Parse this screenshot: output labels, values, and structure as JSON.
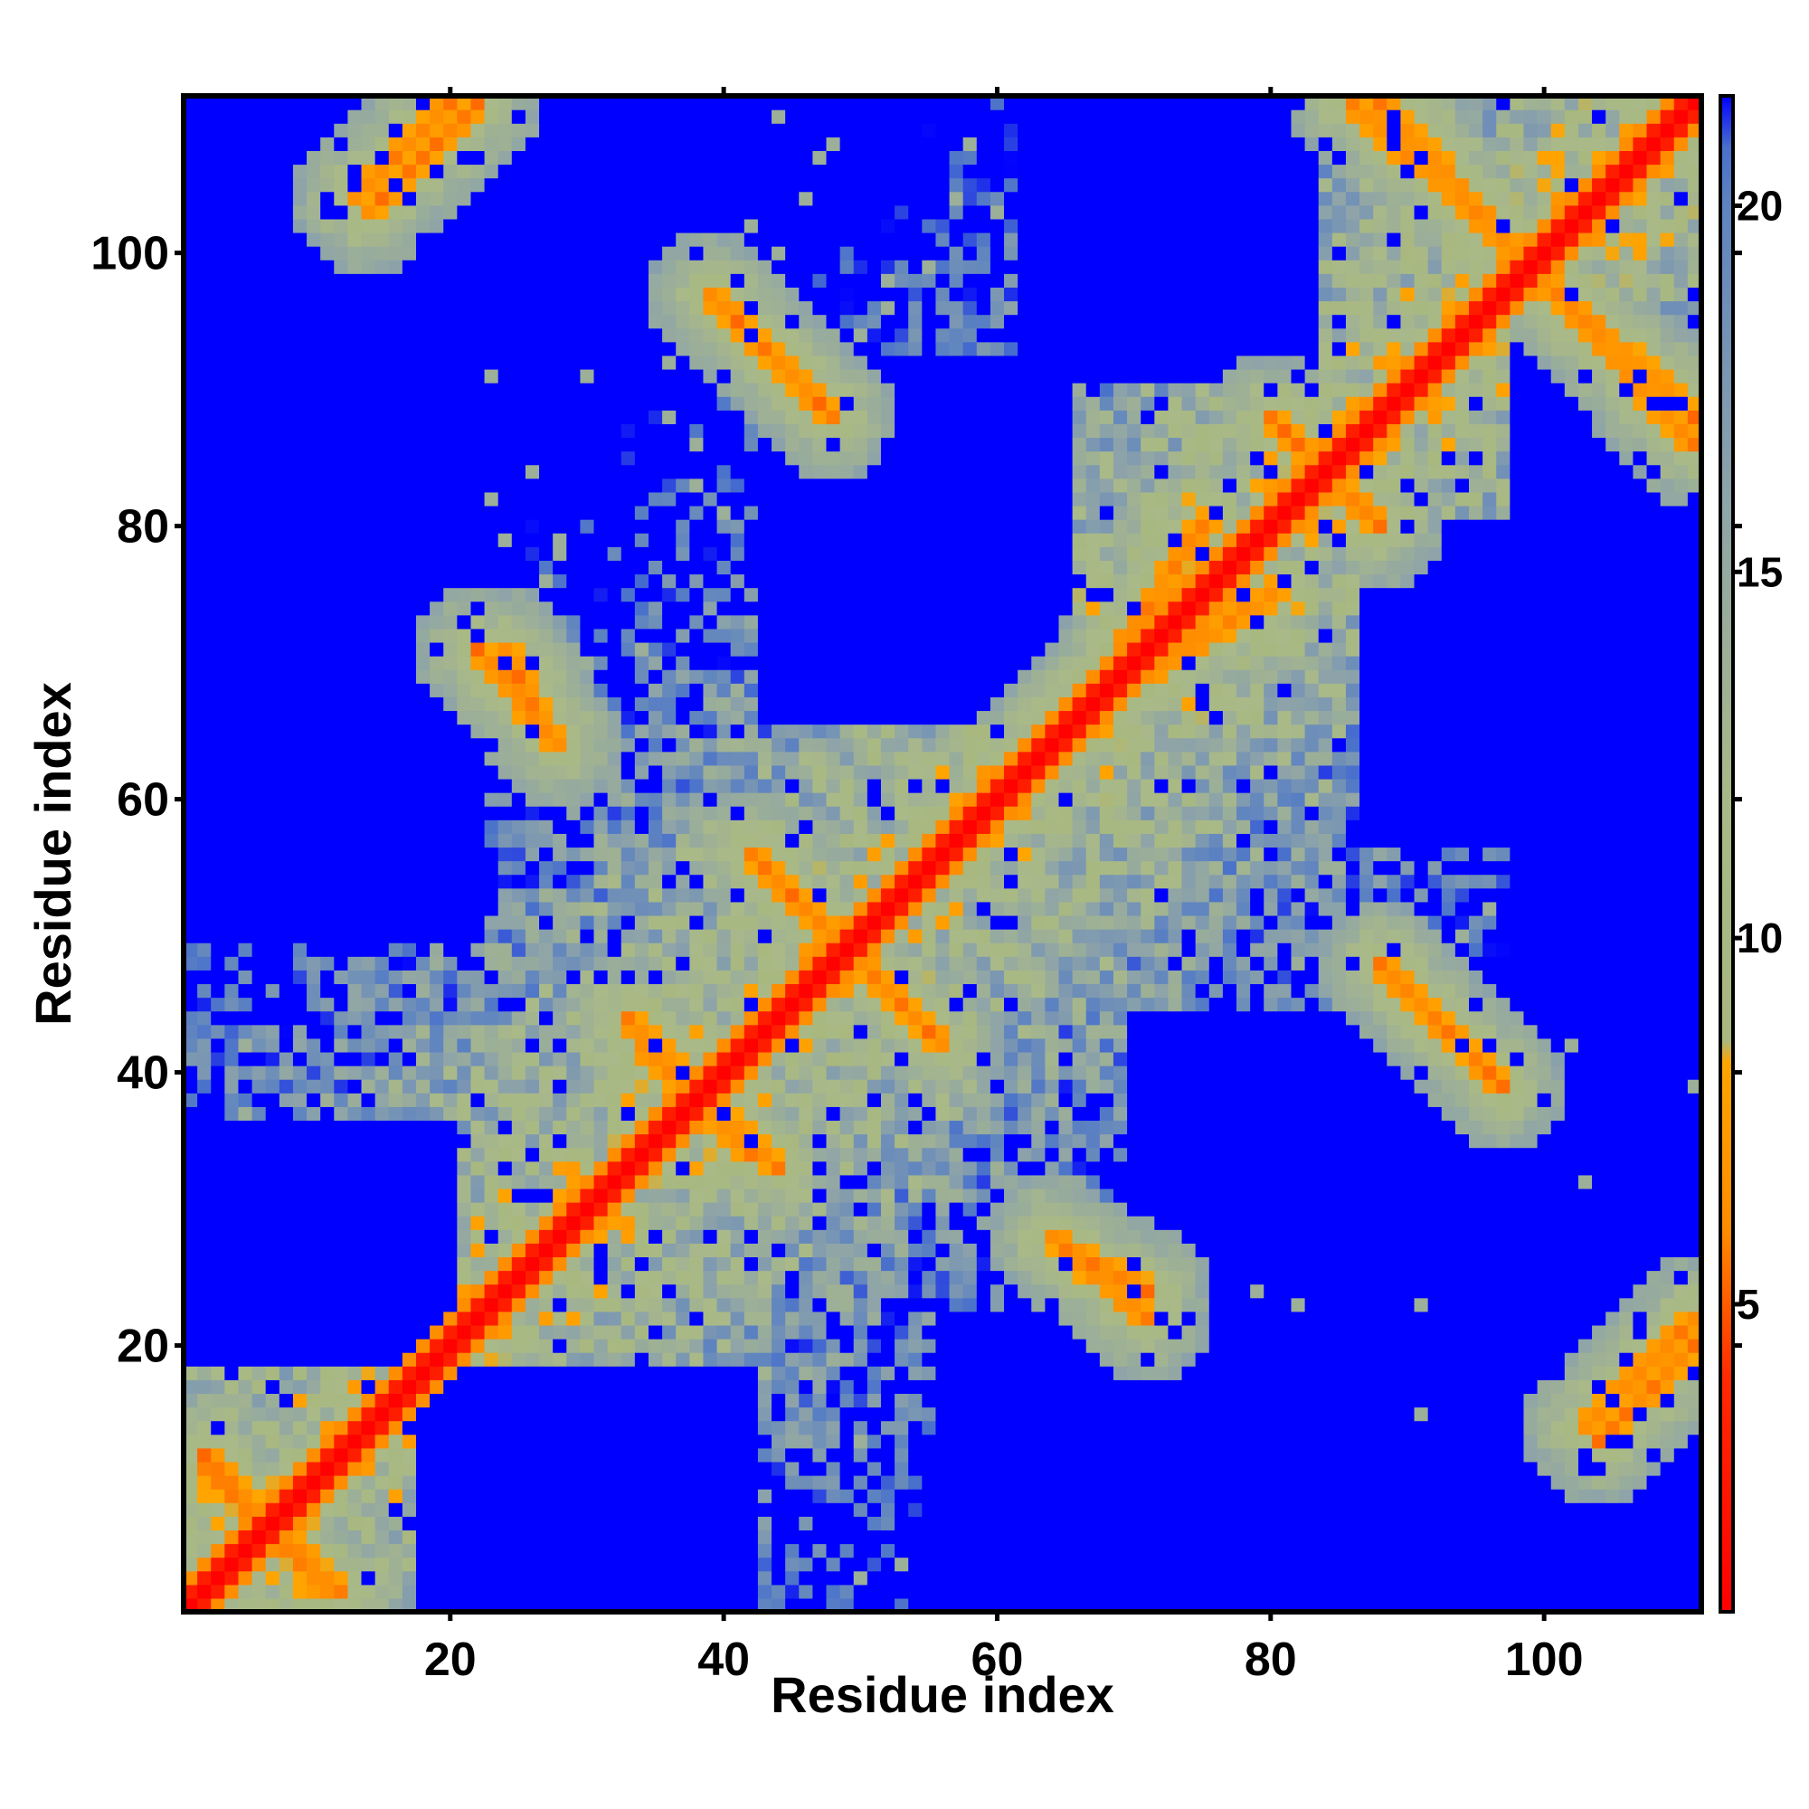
{
  "chart_data": {
    "type": "heatmap",
    "title": "",
    "xlabel": "Residue index",
    "ylabel": "Residue index",
    "n_residues": 111,
    "xlim": [
      1,
      111
    ],
    "ylim": [
      1,
      111
    ],
    "x_ticks": [
      20,
      40,
      60,
      80,
      100
    ],
    "y_ticks": [
      20,
      40,
      60,
      80,
      100
    ],
    "x_tick_labels": [
      "20",
      "40",
      "60",
      "80",
      "100"
    ],
    "y_tick_labels": [
      "20",
      "40",
      "60",
      "80",
      "100"
    ],
    "colorbar": {
      "range": [
        0.8,
        21.5
      ],
      "ticks": [
        5,
        10,
        15,
        20
      ],
      "tick_labels": [
        "5",
        "10",
        "15",
        "20"
      ],
      "stops": [
        {
          "value": 0.8,
          "color": "#ff0000"
        },
        {
          "value": 4.0,
          "color": "#ff2a00"
        },
        {
          "value": 6.0,
          "color": "#ff8c00"
        },
        {
          "value": 8.3,
          "color": "#ffa500"
        },
        {
          "value": 8.6,
          "color": "#a8b87e"
        },
        {
          "value": 12.0,
          "color": "#a9b988"
        },
        {
          "value": 16.0,
          "color": "#8ea4a8"
        },
        {
          "value": 20.0,
          "color": "#5f84c0"
        },
        {
          "value": 20.8,
          "color": "#4870cc"
        },
        {
          "value": 21.5,
          "color": "#0000ff"
        }
      ]
    },
    "cutoff_color": "#0000ff",
    "backbone_spacing": 3.8,
    "contact_bands": [
      {
        "x1": 2,
        "y1": 12,
        "x2": 11,
        "y2": 2
      },
      {
        "x1": 13,
        "y1": 104,
        "x2": 20,
        "y2": 111
      },
      {
        "x1": 39,
        "y1": 97,
        "x2": 47,
        "y2": 89
      },
      {
        "x1": 24,
        "y1": 71,
        "x2": 27,
        "y2": 65
      },
      {
        "x1": 42,
        "y1": 56,
        "x2": 55,
        "y2": 43
      },
      {
        "x1": 33,
        "y1": 44,
        "x2": 42,
        "y2": 34
      },
      {
        "x1": 64,
        "y1": 28,
        "x2": 71,
        "y2": 22
      },
      {
        "x1": 88,
        "y1": 111,
        "x2": 111,
        "y2": 86
      },
      {
        "x1": 88,
        "y1": 48,
        "x2": 96,
        "y2": 40
      },
      {
        "x1": 103,
        "y1": 14,
        "x2": 111,
        "y2": 22
      },
      {
        "x1": 80,
        "y1": 88,
        "x2": 88,
        "y2": 80
      },
      {
        "x1": 59,
        "y1": 58,
        "x2": 68,
        "y2": 67
      },
      {
        "x1": 71,
        "y1": 69,
        "x2": 80,
        "y2": 75
      }
    ],
    "void_regions": [
      {
        "x": [
          18,
          42
        ],
        "y": [
          1,
          18
        ]
      },
      {
        "x": [
          56,
          87
        ],
        "y": [
          1,
          22
        ]
      },
      {
        "x": [
          70,
          95
        ],
        "y": [
          26,
          44
        ]
      },
      {
        "x": [
          98,
          111
        ],
        "y": [
          44,
          58
        ]
      },
      {
        "x": [
          1,
          22
        ],
        "y": [
          50,
          95
        ]
      },
      {
        "x": [
          1,
          20
        ],
        "y": [
          19,
          36
        ]
      },
      {
        "x": [
          87,
          111
        ],
        "y": [
          57,
          80
        ]
      },
      {
        "x": [
          98,
          111
        ],
        "y": [
          76,
          95
        ]
      },
      {
        "x": [
          62,
          83
        ],
        "y": [
          91,
          111
        ]
      },
      {
        "x": [
          43,
          65
        ],
        "y": [
          66,
          92
        ]
      },
      {
        "x": [
          20,
          40
        ],
        "y": [
          97,
          111
        ]
      }
    ]
  }
}
